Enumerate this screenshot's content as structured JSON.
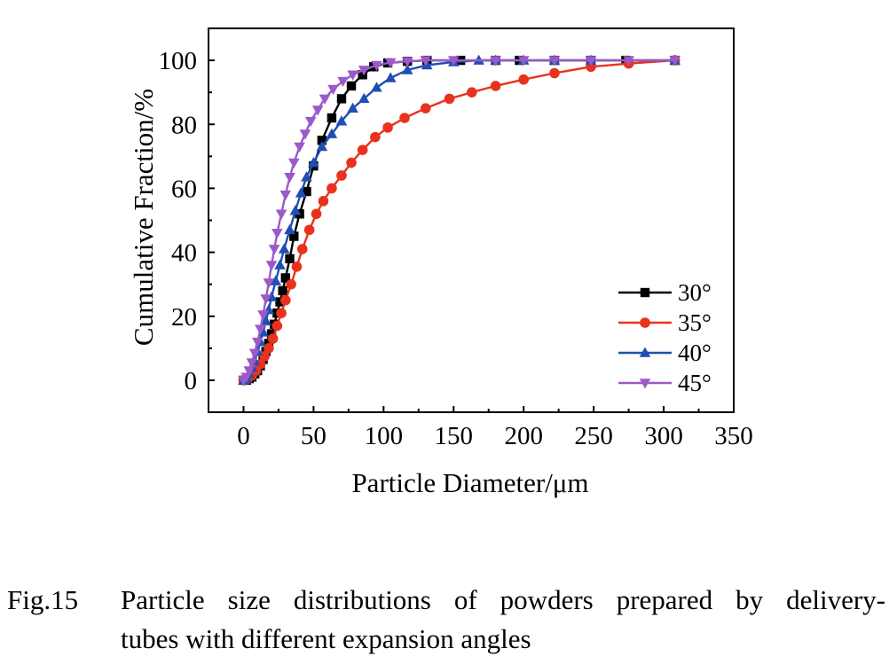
{
  "chart_data": {
    "type": "line",
    "title": "",
    "xlabel": "Particle Diameter/μm",
    "ylabel": "Cumulative Fraction/%",
    "xlim": [
      -25,
      350
    ],
    "ylim": [
      -10,
      110
    ],
    "x_ticks": [
      0,
      50,
      100,
      150,
      200,
      250,
      300,
      350
    ],
    "y_ticks": [
      0,
      20,
      40,
      60,
      80,
      100
    ],
    "legend_position": "bottom-right",
    "grid": false,
    "series": [
      {
        "name": "30°",
        "color": "#000000",
        "marker": "square",
        "x": [
          0,
          2,
          4,
          6,
          8,
          10,
          12,
          14,
          16,
          18,
          20,
          22,
          24,
          26,
          28,
          30,
          33,
          36,
          40,
          45,
          50,
          56,
          63,
          70,
          77,
          85,
          93,
          103,
          117,
          131,
          155,
          180,
          197,
          222,
          248,
          273,
          308
        ],
        "y": [
          0,
          0,
          0.5,
          1,
          2,
          3,
          4.5,
          6.5,
          9,
          11.5,
          14.5,
          17.5,
          21,
          24.5,
          28,
          32,
          38,
          45,
          52,
          59,
          67,
          75,
          82,
          88,
          92,
          95.5,
          98,
          99.2,
          99.7,
          100,
          100,
          100,
          100,
          100,
          100,
          100,
          100
        ]
      },
      {
        "name": "35°",
        "color": "#e8321d",
        "marker": "circle",
        "x": [
          0,
          3,
          6,
          9,
          12,
          15,
          18,
          21,
          24,
          27,
          30,
          34,
          38,
          42,
          47,
          52,
          57,
          63,
          70,
          77,
          85,
          94,
          103,
          115,
          130,
          147,
          163,
          180,
          200,
          222,
          248,
          275,
          308
        ],
        "y": [
          0,
          0.5,
          1.5,
          3,
          5,
          7.5,
          10,
          13,
          17,
          21,
          25,
          30,
          35.5,
          41,
          47,
          52,
          56,
          60,
          64,
          68,
          72,
          76,
          79,
          82,
          85,
          88,
          90,
          92,
          94,
          96,
          98,
          99,
          100
        ]
      },
      {
        "name": "40°",
        "color": "#1f4fb3",
        "marker": "triangle-up",
        "x": [
          0,
          2,
          4,
          6,
          8,
          10,
          12,
          14,
          16,
          18,
          20,
          23,
          26,
          29,
          33,
          37,
          41,
          45,
          50,
          56,
          63,
          70,
          78,
          86,
          95,
          105,
          117,
          131,
          150,
          168,
          180,
          200,
          222,
          248,
          308
        ],
        "y": [
          0,
          0.5,
          2,
          4,
          6,
          9,
          12,
          15,
          18.5,
          22,
          26,
          31,
          36,
          41,
          47,
          53,
          58.5,
          63.5,
          68,
          73,
          77,
          81,
          85,
          88,
          91.5,
          94.5,
          97,
          98.5,
          99.5,
          100,
          100,
          100,
          100,
          100,
          100
        ]
      },
      {
        "name": "45°",
        "color": "#9b59c9",
        "marker": "triangle-down",
        "x": [
          0,
          2,
          4,
          6,
          8,
          10,
          12,
          14,
          16,
          18,
          20,
          22,
          24,
          27,
          30,
          33,
          36,
          40,
          44,
          48,
          53,
          58,
          64,
          71,
          78,
          86,
          95,
          105,
          117,
          130,
          150,
          180,
          200,
          222,
          248,
          275,
          308
        ],
        "y": [
          0,
          1,
          3,
          5.5,
          8.5,
          12,
          16,
          20.5,
          25.5,
          30.5,
          36,
          41,
          46,
          52,
          58,
          63.5,
          68,
          73,
          77,
          81,
          84.5,
          88,
          91,
          93.5,
          95.5,
          97,
          98.5,
          99.3,
          99.7,
          100,
          100,
          100,
          100,
          100,
          100,
          100,
          100
        ]
      }
    ]
  },
  "caption": {
    "number": "Fig.15",
    "line1": "Particle size distributions of powders prepared by delivery-",
    "line2": "tubes with different expansion angles"
  }
}
